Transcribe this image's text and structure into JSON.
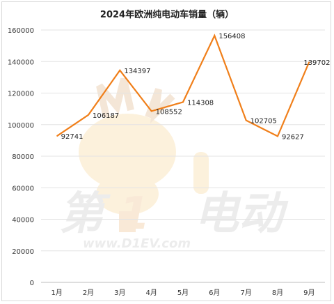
{
  "chart_data": {
    "type": "line",
    "title": "2024年欧洲纯电动车销量（辆）",
    "categories": [
      "1月",
      "2月",
      "3月",
      "4月",
      "5月",
      "6月",
      "7月",
      "8月",
      "9月"
    ],
    "series": [
      {
        "values": [
          92741,
          106187,
          134397,
          108552,
          114308,
          156408,
          102705,
          92627,
          139702
        ]
      }
    ],
    "value_labels": [
      "92741",
      "106187",
      "134397",
      "108552",
      "114308",
      "156408",
      "102705",
      "92627",
      "139702"
    ],
    "y_ticks": [
      "0",
      "20000",
      "40000",
      "60000",
      "80000",
      "100000",
      "120000",
      "140000",
      "160000"
    ],
    "ylim": [
      0,
      160000
    ],
    "grid": "horizontal",
    "line_color": "#f07f1a"
  },
  "watermark": {
    "brand_left": "第",
    "brand_digit": "1",
    "brand_right": "电动",
    "url": "www.D1EV.com",
    "mascot": "cartoon-deer-mascot"
  }
}
